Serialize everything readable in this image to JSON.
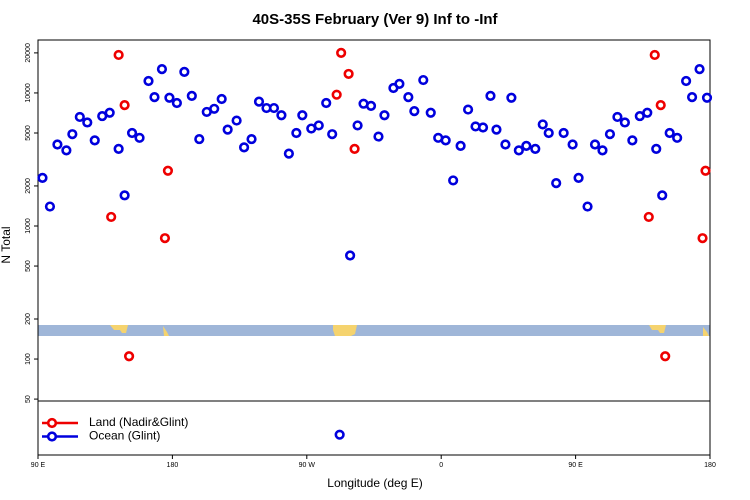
{
  "chart_data": {
    "type": "scatter",
    "title": "40S-35S February (Ver 9)   Inf to -Inf",
    "x_label": "Longitude (deg E)",
    "y_label": "N Total",
    "xlim": [
      90,
      540
    ],
    "ylim": [
      19,
      25000
    ],
    "log_y": true,
    "xticks": [
      {
        "value": 90,
        "label": "90 E"
      },
      {
        "value": 180,
        "label": "180"
      },
      {
        "value": 270,
        "label": "90 W"
      },
      {
        "value": 360,
        "label": "0"
      },
      {
        "value": 450,
        "label": "90 E"
      },
      {
        "value": 540,
        "label": "180"
      }
    ],
    "yticks": [
      50,
      100,
      200,
      500,
      1000,
      2000,
      5000,
      10000,
      20000
    ],
    "legend": "lower left",
    "series": [
      {
        "name": "Land (Nadir&Glint)",
        "color": "#ee0000",
        "x": [
          139,
          144,
          148,
          151,
          175,
          177,
          290,
          293,
          298,
          302,
          499,
          503,
          507,
          510,
          535,
          537
        ],
        "values": [
          1170,
          19300,
          8100,
          105,
          810,
          2600,
          9700,
          20000,
          13900,
          3800,
          1170,
          19300,
          8100,
          105,
          810,
          2600
        ]
      },
      {
        "name": "Ocean (Glint)",
        "color": "#0000dd",
        "x": [
          93,
          98,
          103,
          109,
          113,
          118,
          123,
          128,
          133,
          138,
          144,
          148,
          153,
          158,
          164,
          168,
          173,
          178,
          183,
          188,
          193,
          198,
          203,
          208,
          213,
          217,
          223,
          228,
          233,
          238,
          243,
          248,
          253,
          258,
          263,
          267,
          273,
          278,
          283,
          287,
          292,
          299,
          304,
          308,
          313,
          318,
          322,
          328,
          332,
          338,
          342,
          348,
          353,
          358,
          363,
          368,
          373,
          378,
          383,
          388,
          393,
          397,
          403,
          407,
          412,
          417,
          423,
          428,
          432,
          437,
          442,
          448,
          452,
          458,
          463,
          468,
          473,
          478,
          483,
          488,
          493,
          498,
          504,
          508,
          513,
          518,
          524,
          528,
          533,
          538
        ],
        "values": [
          2300,
          1400,
          4100,
          3700,
          4900,
          6600,
          6000,
          4400,
          6700,
          7100,
          3800,
          1700,
          5000,
          4600,
          12300,
          9300,
          15100,
          9200,
          8400,
          14400,
          9500,
          4500,
          7200,
          7600,
          9000,
          5300,
          6200,
          3900,
          4500,
          8600,
          7700,
          7700,
          6800,
          3500,
          5000,
          6800,
          5400,
          5700,
          8400,
          4900,
          27,
          600,
          5700,
          8300,
          8000,
          4700,
          6800,
          10900,
          11700,
          9300,
          7300,
          12500,
          7100,
          4600,
          4400,
          2200,
          4000,
          7500,
          5600,
          5500,
          9500,
          5300,
          4100,
          9200,
          3700,
          4000,
          3800,
          5800,
          5000,
          2100,
          5000,
          4100,
          2300,
          1400,
          4100,
          3700,
          4900,
          6600,
          6000,
          4400,
          6700,
          7100,
          3800,
          1700,
          5000,
          4600,
          12300,
          9300,
          15100,
          9200
        ]
      }
    ]
  }
}
